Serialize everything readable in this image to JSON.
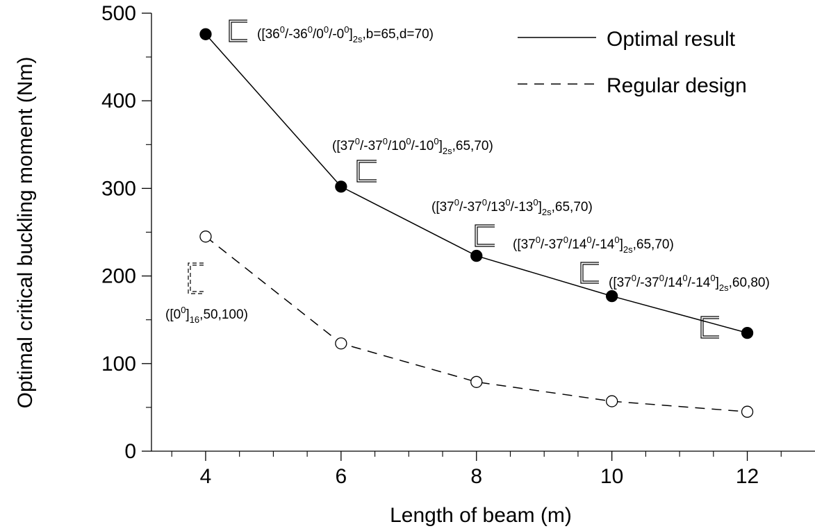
{
  "chart_data": {
    "type": "line",
    "xlabel": "Length of beam (m)",
    "ylabel": "Optimal critical buckling moment (Nm)",
    "xlim": [
      3.2,
      13.0
    ],
    "ylim": [
      0,
      500
    ],
    "xticks": [
      4,
      6,
      8,
      10,
      12
    ],
    "yticks": [
      0,
      100,
      200,
      300,
      400,
      500
    ],
    "x_minor_step": 0.5,
    "y_minor_step": 50,
    "grid": false,
    "legend_position": "top-right",
    "x": [
      4,
      6,
      8,
      10,
      12
    ],
    "series": [
      {
        "name": "Optimal result",
        "values": [
          476,
          302,
          223,
          177,
          135
        ],
        "style": "solid",
        "marker": "filled-circle",
        "color": "#000000"
      },
      {
        "name": "Regular design",
        "values": [
          245,
          123,
          79,
          57,
          45
        ],
        "style": "dashed",
        "marker": "open-circle",
        "color": "#000000"
      }
    ],
    "annotations": [
      {
        "id": "opt-4",
        "pre": "([36",
        "parts": [
          [
            "sup",
            "0"
          ],
          [
            "t",
            "/-36"
          ],
          [
            "sup",
            "0"
          ],
          [
            "t",
            "/0"
          ],
          [
            "sup",
            "0"
          ],
          [
            "t",
            "/-0"
          ],
          [
            "sup",
            "0"
          ],
          [
            "t",
            "]"
          ],
          [
            "sub",
            "2s"
          ],
          [
            "t",
            ",b=65,d=70)"
          ]
        ]
      },
      {
        "id": "opt-6",
        "pre": "([37",
        "parts": [
          [
            "sup",
            "0"
          ],
          [
            "t",
            "/-37"
          ],
          [
            "sup",
            "0"
          ],
          [
            "t",
            "/10"
          ],
          [
            "sup",
            "0"
          ],
          [
            "t",
            "/-10"
          ],
          [
            "sup",
            "0"
          ],
          [
            "t",
            "]"
          ],
          [
            "sub",
            "2s"
          ],
          [
            "t",
            ",65,70)"
          ]
        ]
      },
      {
        "id": "opt-8",
        "pre": "([37",
        "parts": [
          [
            "sup",
            "0"
          ],
          [
            "t",
            "/-37"
          ],
          [
            "sup",
            "0"
          ],
          [
            "t",
            "/13"
          ],
          [
            "sup",
            "0"
          ],
          [
            "t",
            "/-13"
          ],
          [
            "sup",
            "0"
          ],
          [
            "t",
            "]"
          ],
          [
            "sub",
            "2s"
          ],
          [
            "t",
            ",65,70)"
          ]
        ]
      },
      {
        "id": "opt-10",
        "pre": "([37",
        "parts": [
          [
            "sup",
            "0"
          ],
          [
            "t",
            "/-37"
          ],
          [
            "sup",
            "0"
          ],
          [
            "t",
            "/14"
          ],
          [
            "sup",
            "0"
          ],
          [
            "t",
            "/-14"
          ],
          [
            "sup",
            "0"
          ],
          [
            "t",
            "]"
          ],
          [
            "sub",
            "2s"
          ],
          [
            "t",
            ",65,70)"
          ]
        ]
      },
      {
        "id": "opt-12",
        "pre": "([37",
        "parts": [
          [
            "sup",
            "0"
          ],
          [
            "t",
            "/-37"
          ],
          [
            "sup",
            "0"
          ],
          [
            "t",
            "/14"
          ],
          [
            "sup",
            "0"
          ],
          [
            "t",
            "/-14"
          ],
          [
            "sup",
            "0"
          ],
          [
            "t",
            "]"
          ],
          [
            "sub",
            "2s"
          ],
          [
            "t",
            ",60,80)"
          ]
        ]
      },
      {
        "id": "reg-4",
        "pre": "([0",
        "parts": [
          [
            "sup",
            "0"
          ],
          [
            "t",
            "]"
          ],
          [
            "sub",
            "16"
          ],
          [
            "t",
            ",50,100)"
          ]
        ]
      }
    ]
  }
}
